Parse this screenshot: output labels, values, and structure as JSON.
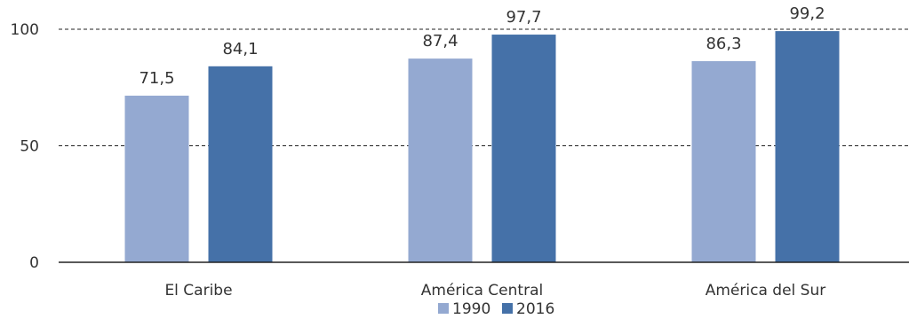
{
  "chart_data": {
    "type": "bar",
    "categories": [
      "El Caribe",
      "América Central",
      "América del Sur"
    ],
    "series": [
      {
        "name": "1990",
        "values": [
          71.5,
          87.4,
          86.3
        ],
        "color": "#94A9D1"
      },
      {
        "name": "2016",
        "values": [
          84.1,
          97.7,
          99.2
        ],
        "color": "#4571A8"
      }
    ],
    "data_labels": [
      [
        "71,5",
        "87,4",
        "86,3"
      ],
      [
        "84,1",
        "97,7",
        "99,2"
      ]
    ],
    "ylim": [
      0,
      100
    ],
    "yticks": [
      0,
      50,
      100
    ],
    "ytick_labels": [
      "0",
      "50",
      "100"
    ],
    "grid": "dashed horizontal",
    "legend_position": "bottom-center",
    "title": "",
    "xlabel": "",
    "ylabel": ""
  }
}
